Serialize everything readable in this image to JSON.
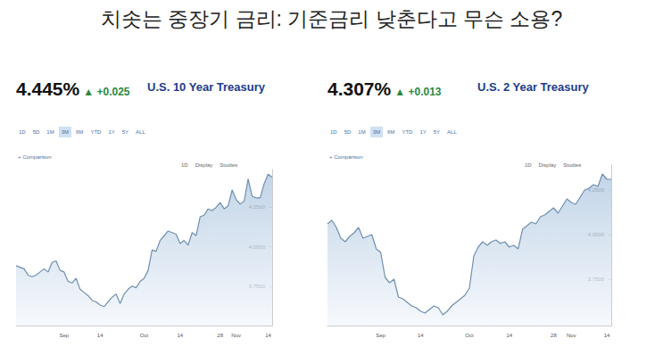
{
  "title": "치솟는 중장기 금리: 기준금리 낮춘다고 무슨 소용?",
  "chart_data": [
    {
      "type": "area",
      "title": "U.S. 10 Year Treasury",
      "price": "4.445%",
      "change": "▲ +0.025",
      "ranges": [
        "1D",
        "5D",
        "1M",
        "3M",
        "6M",
        "YTD",
        "1Y",
        "5Y",
        "ALL"
      ],
      "selected_range": "3M",
      "comparison": "+ Comparison",
      "tools": [
        "1D",
        "Display",
        "Studies"
      ],
      "color": "#6f8fb0",
      "grid": false,
      "categories": [
        null,
        null,
        null,
        null,
        null,
        null,
        null,
        null,
        null,
        null,
        null,
        null,
        "Sep",
        null,
        null,
        null,
        null,
        null,
        null,
        null,
        null,
        "14",
        null,
        null,
        null,
        null,
        null,
        null,
        null,
        null,
        null,
        null,
        "Oct",
        null,
        null,
        null,
        null,
        null,
        null,
        null,
        null,
        "14",
        null,
        null,
        null,
        null,
        null,
        null,
        null,
        null,
        null,
        "28",
        null,
        null,
        null,
        "Nov",
        null,
        null,
        null,
        null,
        null,
        null,
        null,
        "14",
        null
      ],
      "values": [
        3.88,
        3.87,
        3.86,
        3.82,
        3.81,
        3.82,
        3.84,
        3.86,
        3.84,
        3.9,
        3.91,
        3.85,
        3.84,
        3.78,
        3.77,
        3.8,
        3.73,
        3.71,
        3.69,
        3.66,
        3.65,
        3.63,
        3.62,
        3.65,
        3.68,
        3.7,
        3.64,
        3.7,
        3.73,
        3.75,
        3.74,
        3.78,
        3.8,
        3.85,
        3.98,
        3.97,
        4.04,
        4.07,
        4.1,
        4.09,
        4.08,
        4.02,
        4.04,
        4.01,
        4.09,
        4.07,
        4.19,
        4.2,
        4.24,
        4.23,
        4.25,
        4.28,
        4.24,
        4.26,
        4.36,
        4.3,
        4.27,
        4.29,
        4.43,
        4.32,
        4.31,
        4.31,
        4.4,
        4.46,
        4.44
      ],
      "ylim": [
        3.5,
        4.49
      ],
      "yticks": [
        {
          "value": 3.75,
          "label": "3.7500"
        },
        {
          "value": 4.0,
          "label": "4.0000"
        },
        {
          "value": 4.25,
          "label": "4.2500"
        }
      ]
    },
    {
      "type": "area",
      "title": "U.S. 2 Year Treasury",
      "price": "4.307%",
      "change": "▲ +0.013",
      "ranges": [
        "1D",
        "5D",
        "1M",
        "3M",
        "6M",
        "YTD",
        "1Y",
        "5Y",
        "ALL"
      ],
      "selected_range": "3M",
      "comparison": "+ Comparison",
      "tools": [
        "1D",
        "Display",
        "Studies"
      ],
      "color": "#6f8fb0",
      "grid": false,
      "categories": [
        null,
        null,
        null,
        null,
        null,
        null,
        null,
        null,
        null,
        null,
        null,
        null,
        "Sep",
        null,
        null,
        null,
        null,
        null,
        null,
        null,
        null,
        "14",
        null,
        null,
        null,
        null,
        null,
        null,
        null,
        null,
        null,
        null,
        "Oct",
        null,
        null,
        null,
        null,
        null,
        null,
        null,
        null,
        "14",
        null,
        null,
        null,
        null,
        null,
        null,
        null,
        null,
        null,
        "28",
        null,
        null,
        null,
        "Nov",
        null,
        null,
        null,
        null,
        null,
        null,
        null,
        "14",
        null
      ],
      "values": [
        4.06,
        4.08,
        4.04,
        3.98,
        3.96,
        3.99,
        4.01,
        4.04,
        3.98,
        3.99,
        4.0,
        3.92,
        3.9,
        3.76,
        3.73,
        3.75,
        3.65,
        3.64,
        3.62,
        3.6,
        3.59,
        3.57,
        3.56,
        3.58,
        3.6,
        3.59,
        3.55,
        3.57,
        3.6,
        3.62,
        3.64,
        3.66,
        3.7,
        3.88,
        3.93,
        3.96,
        3.94,
        3.96,
        3.97,
        3.95,
        3.96,
        3.93,
        3.94,
        3.92,
        4.03,
        4.05,
        4.07,
        4.06,
        4.1,
        4.11,
        4.13,
        4.15,
        4.12,
        4.16,
        4.2,
        4.18,
        4.17,
        4.21,
        4.25,
        4.26,
        4.28,
        4.27,
        4.34,
        4.31,
        4.31
      ],
      "ylim": [
        3.49,
        4.39
      ],
      "yticks": [
        {
          "value": 3.75,
          "label": "3.7500"
        },
        {
          "value": 4.0,
          "label": "4.0000"
        },
        {
          "value": 4.25,
          "label": "4.2500"
        }
      ]
    }
  ]
}
